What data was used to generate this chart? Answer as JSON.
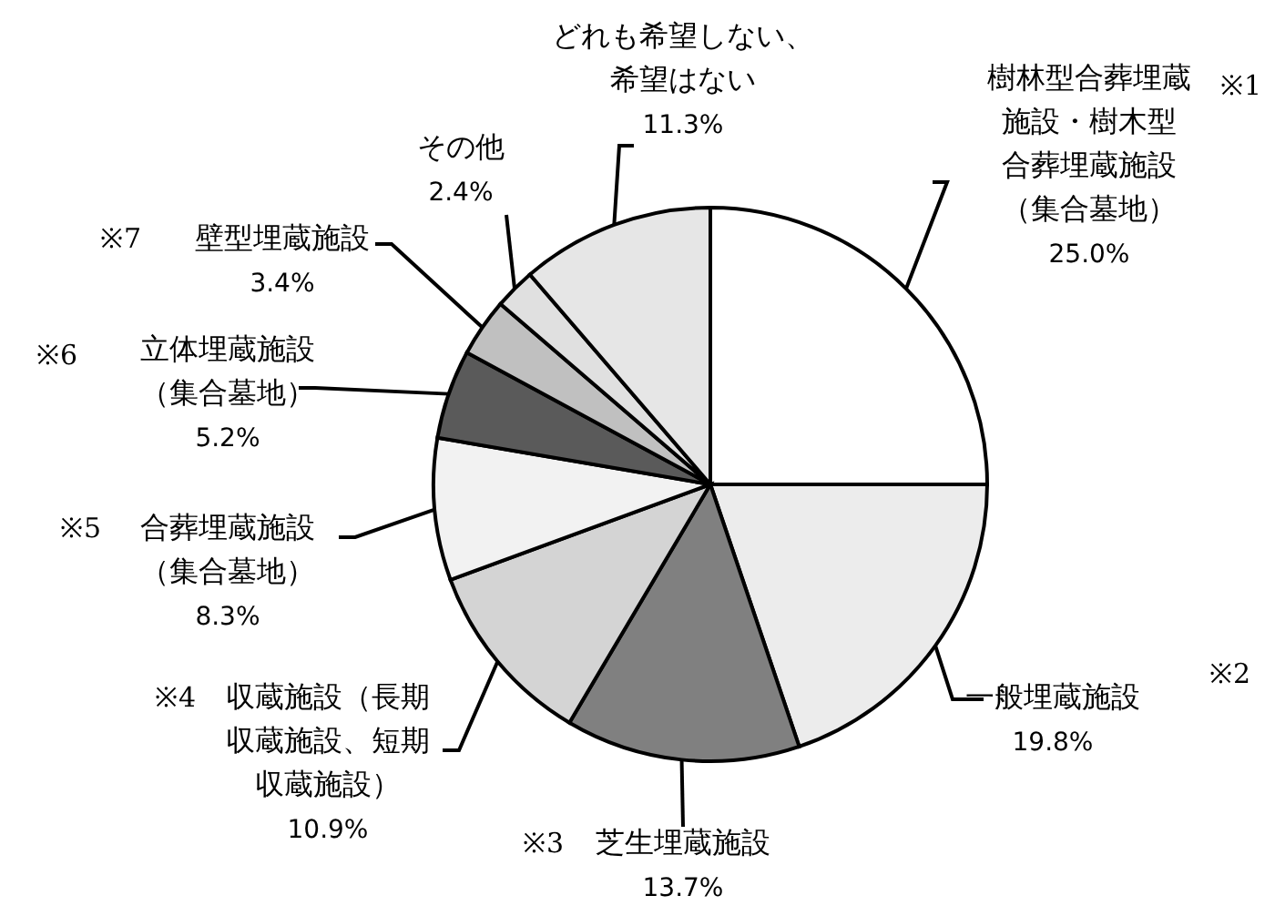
{
  "chart_data": {
    "type": "pie",
    "categories": [
      "樹林型合葬埋蔵施設・樹木型合葬埋蔵施設（集合墓地）",
      "一般埋蔵施設",
      "芝生埋蔵施設",
      "収蔵施設（長期収蔵施設、短期収蔵施設）",
      "合葬埋蔵施設（集合墓地）",
      "立体埋蔵施設（集合墓地）",
      "壁型埋蔵施設",
      "その他",
      "どれも希望しない、希望はない"
    ],
    "values": [
      25.0,
      19.8,
      13.7,
      10.9,
      8.3,
      5.2,
      3.4,
      2.4,
      11.3
    ],
    "value_labels": [
      "25.0%",
      "19.8%",
      "13.7%",
      "10.9%",
      "8.3%",
      "5.2%",
      "3.4%",
      "2.4%",
      "11.3%"
    ],
    "colors": [
      "#ffffff",
      "#ececec",
      "#808080",
      "#d4d4d4",
      "#f2f2f2",
      "#5a5a5a",
      "#c0c0c0",
      "#e0e0e0",
      "#e6e6e6"
    ],
    "annotations": [
      "※1",
      "※2",
      "※3",
      "※4",
      "※5",
      "※6",
      "※7"
    ]
  }
}
